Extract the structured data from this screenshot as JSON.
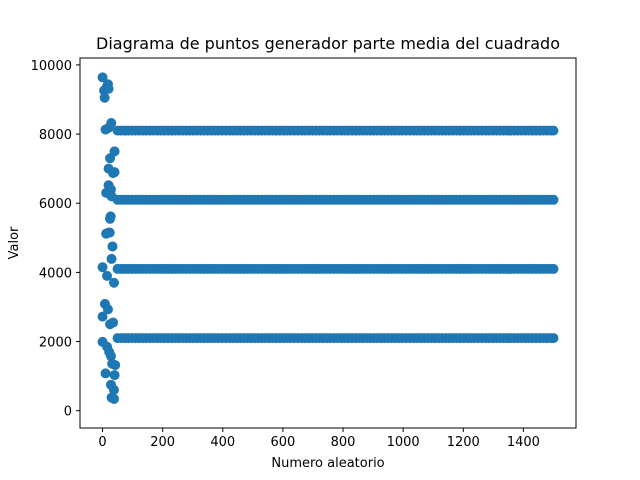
{
  "chart_data": {
    "type": "scatter",
    "title": "Diagrama de puntos generador parte media del cuadrado",
    "xlabel": "Numero aleatorio",
    "ylabel": "Valor",
    "xlim": [
      -75,
      1575
    ],
    "ylim": [
      -500,
      10200
    ],
    "xticks": [
      0,
      200,
      400,
      600,
      800,
      1000,
      1200,
      1400
    ],
    "yticks": [
      0,
      2000,
      4000,
      6000,
      8000,
      10000
    ],
    "grid": false,
    "legend": "none",
    "marker_color": "#1f77b4",
    "series": [
      {
        "points": [
          [
            0,
            9640
          ],
          [
            5,
            9260
          ],
          [
            7,
            9050
          ],
          [
            14,
            9360
          ],
          [
            18,
            9440
          ],
          [
            20,
            9310
          ],
          [
            10,
            8130
          ],
          [
            20,
            8180
          ],
          [
            29,
            8320
          ],
          [
            40,
            7500
          ],
          [
            25,
            7300
          ],
          [
            20,
            7000
          ],
          [
            35,
            6870
          ],
          [
            40,
            6900
          ],
          [
            20,
            6520
          ],
          [
            28,
            6400
          ],
          [
            12,
            6300
          ],
          [
            30,
            6200
          ],
          [
            20,
            5150
          ],
          [
            27,
            5620
          ],
          [
            25,
            5550
          ],
          [
            24,
            5150
          ],
          [
            12,
            5120
          ],
          [
            33,
            4750
          ],
          [
            30,
            4390
          ],
          [
            0,
            4150
          ],
          [
            15,
            3900
          ],
          [
            38,
            3700
          ],
          [
            8,
            3090
          ],
          [
            18,
            2930
          ],
          [
            0,
            2720
          ],
          [
            25,
            2500
          ],
          [
            35,
            2550
          ],
          [
            0,
            1990
          ],
          [
            15,
            1850
          ],
          [
            22,
            1700
          ],
          [
            28,
            1580
          ],
          [
            32,
            1360
          ],
          [
            42,
            1320
          ],
          [
            10,
            1080
          ],
          [
            40,
            1030
          ],
          [
            28,
            750
          ],
          [
            38,
            600
          ],
          [
            30,
            380
          ],
          [
            38,
            340
          ]
        ],
        "steady_levels": [
          8100,
          6100,
          4100,
          2100
        ],
        "steady_x_start": 50,
        "steady_x_end": 1500,
        "steady_x_step": 12
      }
    ]
  }
}
